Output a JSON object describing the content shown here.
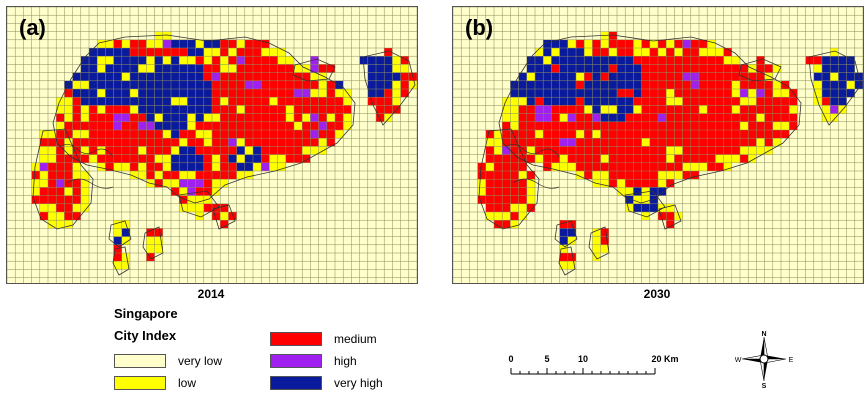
{
  "panels": [
    {
      "label": "(a)",
      "year": "2014"
    },
    {
      "label": "(b)",
      "year": "2030"
    }
  ],
  "legend": {
    "region": "Singapore",
    "title": "City Index",
    "classes": [
      {
        "label": "very low",
        "color": "#ffffcc"
      },
      {
        "label": "low",
        "color": "#ffff00"
      },
      {
        "label": "medium",
        "color": "#ff0000"
      },
      {
        "label": "high",
        "color": "#a020f0"
      },
      {
        "label": "very high",
        "color": "#0a1a9c"
      }
    ]
  },
  "scale_bar": {
    "ticks": [
      "0",
      "5",
      "10",
      "20 Km"
    ]
  },
  "compass": {
    "n": "N",
    "s": "S",
    "e": "E",
    "w": "W"
  },
  "colors": {
    "grid": "#8a8a5a",
    "coast": "#333333",
    "frame": "#555555"
  }
}
